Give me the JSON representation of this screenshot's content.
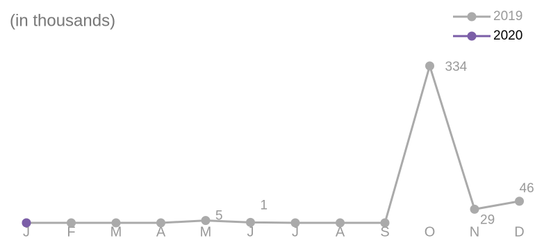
{
  "chart_data": {
    "type": "line",
    "subtitle": "(in thousands)",
    "categories": [
      "J",
      "F",
      "M",
      "A",
      "M",
      "J",
      "J",
      "A",
      "S",
      "O",
      "N",
      "D"
    ],
    "series": [
      {
        "name": "2019",
        "color": "#aaaaaa",
        "values": [
          0,
          0,
          0,
          0,
          5,
          1,
          0,
          0,
          0,
          334,
          29,
          46
        ]
      },
      {
        "name": "2020",
        "color": "#7b5ea7",
        "values": [
          0,
          null,
          null,
          null,
          null,
          null,
          null,
          null,
          null,
          null,
          null,
          null
        ]
      }
    ]
  }
}
